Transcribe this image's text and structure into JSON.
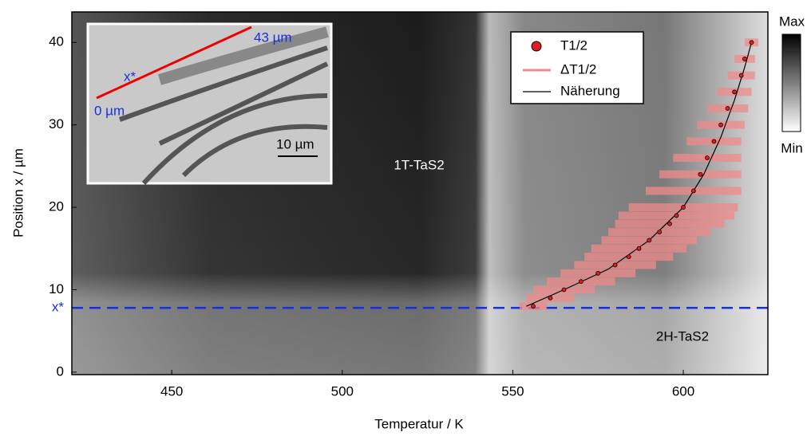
{
  "chart_data": {
    "type": "scatter",
    "xlabel": "Temperatur / K",
    "ylabel": "Position x / µm",
    "xlim": [
      420.7,
      624.8
    ],
    "ylim": [
      -0.3,
      43.7
    ],
    "xticks": [
      450,
      500,
      550,
      600
    ],
    "yticks": [
      0,
      10,
      20,
      30,
      40
    ],
    "annotations": {
      "phase_1t": "1T-TaS2",
      "phase_2h": "2H-TaS2",
      "x_star": "x*",
      "x_star_position": 7.8,
      "colorbar_max": "Max",
      "colorbar_min": "Min",
      "inset_top": "43 µm",
      "inset_x": "x*",
      "inset_zero": "0 µm",
      "inset_scale": "10 µm"
    },
    "series": [
      {
        "name": "T1/2",
        "color": "#e02020",
        "x": [
          556,
          561,
          565,
          570,
          575,
          580,
          584,
          587,
          590,
          593,
          596,
          598,
          600,
          603,
          605,
          607,
          609,
          611,
          613,
          615,
          617,
          618,
          620
        ],
        "values": [
          8,
          9,
          10,
          11,
          12,
          13,
          14,
          15,
          16,
          17,
          18,
          19,
          20,
          22,
          24,
          26,
          28,
          30,
          32,
          34,
          36,
          38,
          40
        ]
      },
      {
        "name": "ΔT1/2",
        "color": "#f08a8a",
        "values": [
          4,
          7,
          9,
          10,
          11,
          12,
          13,
          14,
          14,
          15,
          16,
          17,
          16,
          14,
          12,
          10,
          8,
          7,
          6,
          5,
          4,
          3,
          2
        ]
      },
      {
        "name": "Näherung",
        "color": "#000000",
        "x": [
          554,
          565,
          578,
          590,
          600,
          606,
          611,
          615,
          618,
          620
        ],
        "values": [
          8,
          10,
          12.5,
          16,
          20,
          24,
          28.5,
          33,
          37,
          40
        ]
      }
    ]
  }
}
